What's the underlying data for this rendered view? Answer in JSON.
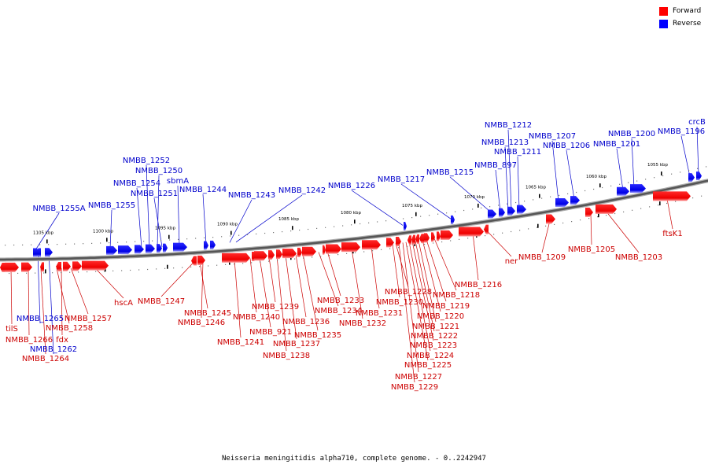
{
  "legend": {
    "forward_label": "Forward",
    "reverse_label": "Reverse",
    "forward_color": "#ff0000",
    "reverse_color": "#0000ff"
  },
  "caption": "Neisseria meningitidis alpha710, complete genome. - 0..2242947",
  "scale_labels": [
    "1105 kbp",
    "1100 kbp",
    "1095 kbp",
    "1090 kbp",
    "1085 kbp",
    "1080 kbp",
    "1075 kbp",
    "1070 kbp",
    "1065 kbp",
    "1060 kbp",
    "1055 kbp"
  ],
  "reverse_genes": [
    "NMBB_1255A",
    "NMBB_1255",
    "NMBB_1254",
    "NMBB_1252",
    "NMBB_1250",
    "NMBB_1251",
    "sbmA",
    "NMBB_1244",
    "NMBB_1243",
    "NMBB_1242",
    "NMBB_1226",
    "NMBB_1217",
    "NMBB_1215",
    "NMBB_897",
    "NMBB_1213",
    "NMBB_1212",
    "NMBB_1211",
    "NMBB_1207",
    "NMBB_1206",
    "NMBB_1201",
    "NMBB_1200",
    "NMBB_1196",
    "crcB",
    "NMBB_1265",
    "NMBB_1262"
  ],
  "forward_genes": [
    "tilS",
    "NMBB_1266",
    "NMBB_1264",
    "NMBB_1258",
    "fdx",
    "NMBB_1257",
    "hscA",
    "NMBB_1247",
    "NMBB_1245",
    "NMBB_1246",
    "NMBB_1241",
    "NMBB_1240",
    "NMBB_921",
    "NMBB_1239",
    "NMBB_1238",
    "NMBB_1237",
    "NMBB_1236",
    "NMBB_1235",
    "NMBB_1234",
    "NMBB_1233",
    "NMBB_1232",
    "NMBB_1231",
    "NMBB_1230",
    "NMBB_1228",
    "NMBB_1229",
    "NMBB_1227",
    "NMBB_1225",
    "NMBB_1224",
    "NMBB_1223",
    "NMBB_1222",
    "NMBB_1221",
    "NMBB_1220",
    "NMBB_1219",
    "NMBB_1218",
    "NMBB_1216",
    "ner",
    "NMBB_1209",
    "NMBB_1205",
    "NMBB_1203",
    "ftsK1"
  ]
}
